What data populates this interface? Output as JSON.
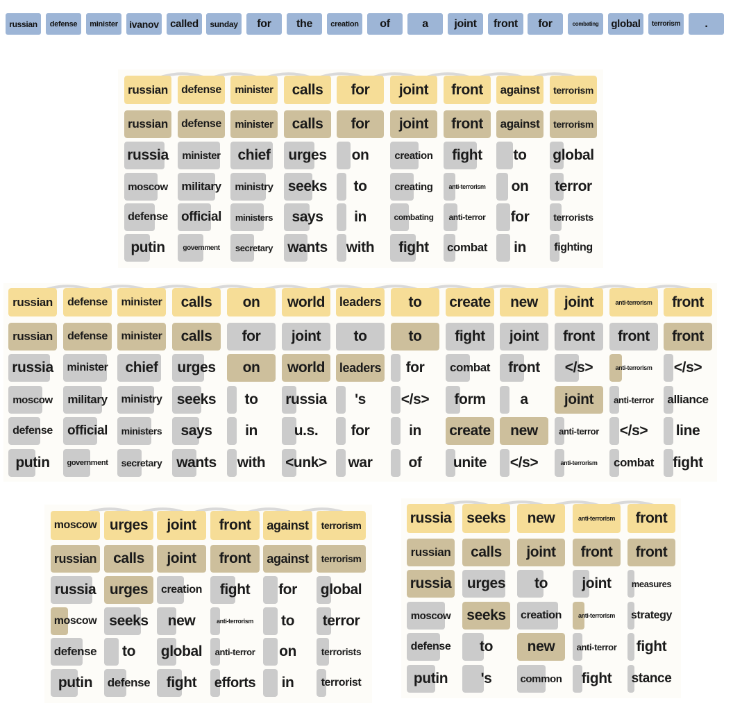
{
  "source_sentence": [
    "russian",
    "defense",
    "minister",
    "ivanov",
    "called",
    "sunday",
    "for",
    "the",
    "creation",
    "of",
    "a",
    "joint",
    "front",
    "for",
    "combating",
    "global",
    "terrorism",
    "."
  ],
  "colors": {
    "source_token": "#9db5d6",
    "top_hypothesis": "#f6dd97",
    "selected_path": "#cdbf9c",
    "candidate": "#cbcbcb"
  },
  "beam_panels": [
    {
      "columns": [
        [
          "russian",
          "russian",
          "russia",
          "moscow",
          "defense",
          "putin"
        ],
        [
          "defense",
          "defense",
          "minister",
          "military",
          "official",
          "government"
        ],
        [
          "minister",
          "minister",
          "chief",
          "ministry",
          "ministers",
          "secretary"
        ],
        [
          "calls",
          "calls",
          "urges",
          "seeks",
          "says",
          "wants"
        ],
        [
          "for",
          "for",
          "on",
          "to",
          "in",
          "with"
        ],
        [
          "joint",
          "joint",
          "creation",
          "creating",
          "combating",
          "fight"
        ],
        [
          "front",
          "front",
          "fight",
          "anti-terrorism",
          "anti-terror",
          "combat"
        ],
        [
          "against",
          "against",
          "to",
          "on",
          "for",
          "in"
        ],
        [
          "terrorism",
          "terrorism",
          "global",
          "terror",
          "terrorists",
          "fighting"
        ]
      ],
      "levels": [
        [
          1,
          1,
          0.85,
          0.7,
          0.65,
          0.55
        ],
        [
          1,
          1,
          0.9,
          0.8,
          0.7,
          0.55
        ],
        [
          1,
          1,
          0.9,
          0.75,
          0.7,
          0.5
        ],
        [
          1,
          1,
          0.65,
          0.6,
          0.55,
          0.5
        ],
        [
          1,
          1,
          0.3,
          0.2,
          0.2,
          0.2
        ],
        [
          1,
          1,
          0.6,
          0.5,
          0.4,
          0.55
        ],
        [
          1,
          1,
          0.7,
          0.25,
          0.3,
          0.25
        ],
        [
          1,
          1,
          0.35,
          0.25,
          0.3,
          0.3
        ],
        [
          1,
          1,
          0.3,
          0.3,
          0.25,
          0.2
        ]
      ],
      "selected": [
        [
          1
        ],
        [
          1
        ],
        [
          1
        ],
        [
          1
        ],
        [
          1
        ],
        [
          1
        ],
        [
          1
        ],
        [
          1
        ],
        [
          1
        ]
      ]
    },
    {
      "columns": [
        [
          "russian",
          "russian",
          "russia",
          "moscow",
          "defense",
          "putin"
        ],
        [
          "defense",
          "defense",
          "minister",
          "military",
          "official",
          "government"
        ],
        [
          "minister",
          "minister",
          "chief",
          "ministry",
          "ministers",
          "secretary"
        ],
        [
          "calls",
          "calls",
          "urges",
          "seeks",
          "says",
          "wants"
        ],
        [
          "on",
          "for",
          "on",
          "to",
          "in",
          "with"
        ],
        [
          "world",
          "joint",
          "world",
          "russia",
          "u.s.",
          "<unk>"
        ],
        [
          "leaders",
          "to",
          "leaders",
          "'s",
          "for",
          "war"
        ],
        [
          "to",
          "to",
          "for",
          "</s>",
          "in",
          "of"
        ],
        [
          "create",
          "fight",
          "combat",
          "form",
          "create",
          "unite"
        ],
        [
          "new",
          "joint",
          "front",
          "a",
          "new",
          "</s>"
        ],
        [
          "joint",
          "front",
          "</s>",
          "joint",
          "anti-terror",
          "anti-terrorism"
        ],
        [
          "anti-terrorism",
          "front",
          "anti-terrorism",
          "anti-terror",
          "</s>",
          "combat"
        ],
        [
          "front",
          "front",
          "</s>",
          "alliance",
          "line",
          "fight"
        ]
      ],
      "levels": [
        [
          1,
          1,
          0.85,
          0.7,
          0.65,
          0.55
        ],
        [
          1,
          1,
          0.9,
          0.8,
          0.7,
          0.55
        ],
        [
          1,
          1,
          0.9,
          0.75,
          0.7,
          0.5
        ],
        [
          1,
          1,
          0.65,
          0.6,
          0.55,
          0.5
        ],
        [
          1,
          1,
          1,
          0.2,
          0.2,
          0.2
        ],
        [
          1,
          1,
          1,
          0.3,
          0.3,
          0.3
        ],
        [
          1,
          1,
          1,
          0.2,
          0.2,
          0.2
        ],
        [
          1,
          1,
          0.2,
          0.2,
          0.2,
          0.2
        ],
        [
          1,
          1,
          0.5,
          0.3,
          1,
          0.2
        ],
        [
          1,
          1,
          0.5,
          0.2,
          1,
          0.2
        ],
        [
          1,
          1,
          0.5,
          1,
          0.2,
          0.2
        ],
        [
          1,
          1,
          0.25,
          0.2,
          0.2,
          0.2
        ],
        [
          1,
          1,
          0.2,
          0.2,
          0.2,
          0.2
        ]
      ],
      "selected": [
        [
          1
        ],
        [
          1
        ],
        [
          1
        ],
        [
          1
        ],
        [
          2
        ],
        [
          2
        ],
        [
          2
        ],
        [
          1
        ],
        [
          4
        ],
        [
          4
        ],
        [
          3
        ],
        [
          2
        ],
        [
          1
        ]
      ]
    },
    {
      "columns": [
        [
          "moscow",
          "russian",
          "russia",
          "moscow",
          "defense",
          "putin"
        ],
        [
          "urges",
          "calls",
          "urges",
          "seeks",
          "to",
          "defense"
        ],
        [
          "joint",
          "joint",
          "creation",
          "new",
          "global",
          "fight"
        ],
        [
          "front",
          "front",
          "fight",
          "anti-terrorism",
          "anti-terror",
          "efforts"
        ],
        [
          "against",
          "against",
          "for",
          "to",
          "on",
          "in"
        ],
        [
          "terrorism",
          "terrorism",
          "global",
          "terror",
          "terrorists",
          "terrorist"
        ]
      ],
      "levels": [
        [
          1,
          1,
          0.85,
          0.35,
          0.65,
          0.55
        ],
        [
          1,
          1,
          1,
          0.75,
          0.3,
          0.45
        ],
        [
          1,
          1,
          0.55,
          0.4,
          0.4,
          0.5
        ],
        [
          1,
          1,
          0.5,
          0.2,
          0.2,
          0.2
        ],
        [
          1,
          1,
          0.3,
          0.3,
          0.3,
          0.3
        ],
        [
          1,
          1,
          0.3,
          0.3,
          0.25,
          0.2
        ]
      ],
      "selected": [
        [
          1,
          3
        ],
        [
          1,
          2
        ],
        [
          1
        ],
        [
          1
        ],
        [
          1
        ],
        [
          1
        ]
      ]
    },
    {
      "columns": [
        [
          "russia",
          "russian",
          "russia",
          "moscow",
          "defense",
          "putin"
        ],
        [
          "seeks",
          "calls",
          "urges",
          "seeks",
          "to",
          "'s"
        ],
        [
          "new",
          "joint",
          "to",
          "creation",
          "new",
          "common"
        ],
        [
          "anti-terrorism",
          "front",
          "joint",
          "anti-terrorism",
          "anti-terror",
          "fight"
        ],
        [
          "front",
          "front",
          "measures",
          "strategy",
          "fight",
          "stance"
        ]
      ],
      "levels": [
        [
          1,
          1,
          1,
          0.8,
          0.7,
          0.6
        ],
        [
          1,
          1,
          0.9,
          1,
          0.45,
          0.45
        ],
        [
          1,
          1,
          0.55,
          0.85,
          1,
          0.6
        ],
        [
          1,
          1,
          0.35,
          0.25,
          0.2,
          0.2
        ],
        [
          1,
          1,
          0.15,
          0.15,
          0.15,
          0.15
        ]
      ],
      "selected": [
        [
          1,
          2
        ],
        [
          1,
          3
        ],
        [
          1,
          4
        ],
        [
          1,
          3
        ],
        [
          1
        ]
      ]
    }
  ]
}
